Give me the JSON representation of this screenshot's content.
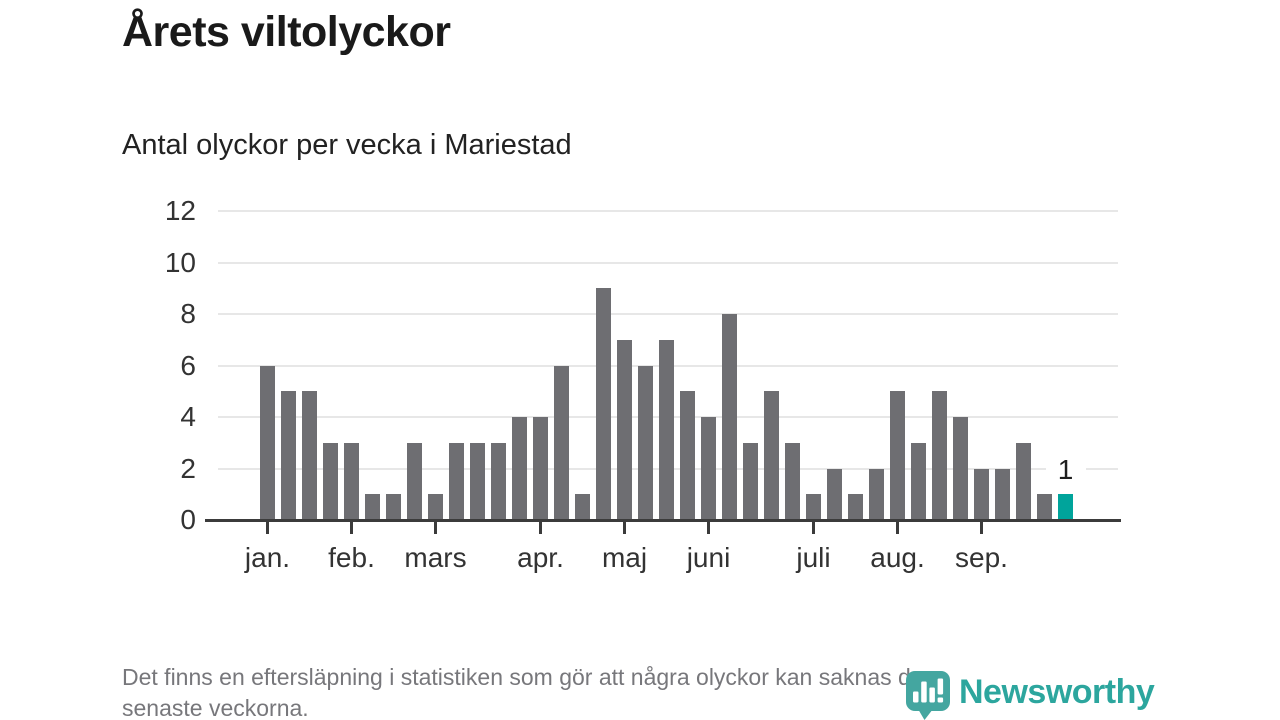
{
  "header": {
    "title": "Årets viltolyckor"
  },
  "chart_data": {
    "type": "bar",
    "title": "Årets viltolyckor",
    "subtitle": "Antal olyckor per vecka i Mariestad",
    "x_unit": "vecka",
    "values": [
      6,
      5,
      5,
      3,
      3,
      1,
      1,
      3,
      1,
      3,
      3,
      3,
      4,
      4,
      6,
      1,
      9,
      7,
      6,
      7,
      5,
      4,
      8,
      3,
      5,
      3,
      1,
      2,
      1,
      2,
      5,
      3,
      5,
      4,
      2,
      2,
      3,
      1,
      1
    ],
    "months": [
      {
        "label": "jan.",
        "week_index": 0
      },
      {
        "label": "feb.",
        "week_index": 4
      },
      {
        "label": "mars",
        "week_index": 8
      },
      {
        "label": "apr.",
        "week_index": 13
      },
      {
        "label": "maj",
        "week_index": 17
      },
      {
        "label": "juni",
        "week_index": 21
      },
      {
        "label": "juli",
        "week_index": 26
      },
      {
        "label": "aug.",
        "week_index": 30
      },
      {
        "label": "sep.",
        "week_index": 34
      }
    ],
    "y_ticks": [
      0,
      2,
      4,
      6,
      8,
      10,
      12
    ],
    "ylim": [
      0,
      12
    ],
    "grid": true,
    "legend": null,
    "annotation": {
      "bar_index": 38,
      "label": "1"
    },
    "highlight_last_bar": true,
    "colors": {
      "bar": "#6e6e72",
      "highlight": "#00a49b",
      "grid": "#e7e7e7",
      "axis": "#3b3b3b",
      "tick_label": "#333333",
      "annotation": "#1f1f1f"
    }
  },
  "footer": {
    "note_line1": "Det finns en eftersläpning i statistiken som gör att några olyckor kan saknas de",
    "note_line2": "senaste veckorna.",
    "brand": "Newsworthy",
    "brand_color": "#2ca69e",
    "icon_color": "#44a6a0",
    "logo_icon": "newsworthy-pin-barchart-icon"
  }
}
